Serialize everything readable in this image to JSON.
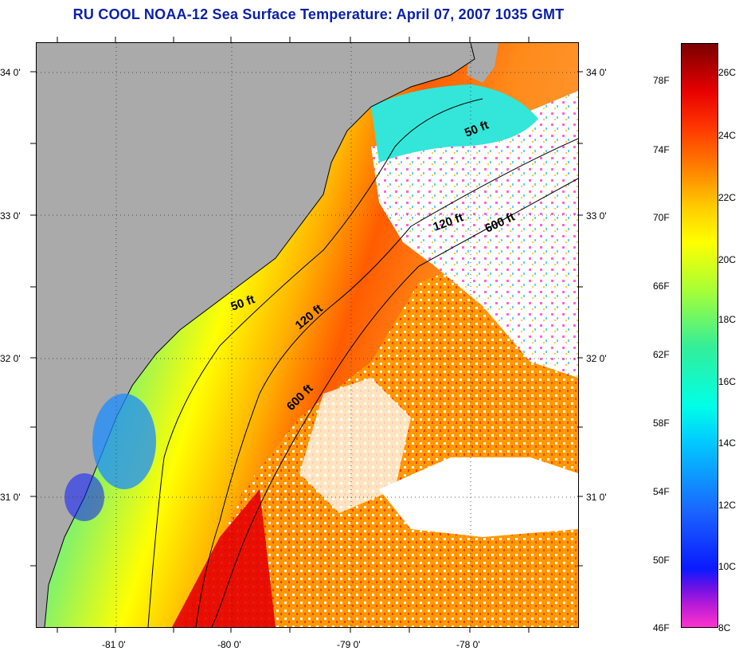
{
  "title": "RU COOL  NOAA-12  Sea Surface Temperature:  April 07, 2007 1035 GMT",
  "map": {
    "lat_labels": [
      "34 0'",
      "33 0'",
      "32 0'",
      "31 0'"
    ],
    "lon_labels": [
      "-81 0'",
      "-80 0'",
      "-79 0'",
      "-78 0'"
    ],
    "contours": [
      {
        "label": "50 ft"
      },
      {
        "label": "120 ft"
      },
      {
        "label": "600 ft"
      },
      {
        "label": "50 ft"
      },
      {
        "label": "120 ft"
      },
      {
        "label": "600 ft"
      }
    ],
    "colors": {
      "land": "#aaaaaa",
      "cloud": "#ffffff",
      "title": "#0a1fa8"
    }
  },
  "colorbar": {
    "f_labels": [
      "78F",
      "74F",
      "70F",
      "66F",
      "62F",
      "58F",
      "54F",
      "50F",
      "46F"
    ],
    "c_labels": [
      "26C",
      "24C",
      "22C",
      "20C",
      "18C",
      "16C",
      "14C",
      "12C",
      "10C",
      "8C"
    ],
    "stops": [
      "#ff33cc",
      "#8a1ad8",
      "#0a1aff",
      "#1a8cff",
      "#00e6ff",
      "#33ee99",
      "#aaff33",
      "#ffff00",
      "#ffaa00",
      "#ff4d00",
      "#e60000",
      "#7a0000"
    ]
  }
}
